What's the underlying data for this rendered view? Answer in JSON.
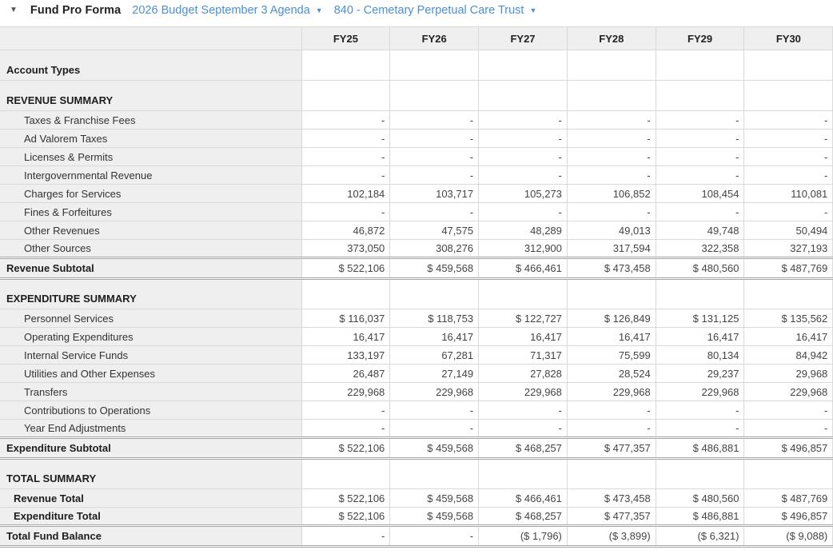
{
  "header": {
    "collapse_icon": "▼",
    "title": "Fund Pro Forma",
    "budget_selector": "2026 Budget September 3 Agenda",
    "budget_selector_caret": "▼",
    "fund_selector": "840 - Cemetary Perpetual Care Trust",
    "fund_selector_caret": "▼"
  },
  "colors": {
    "link_blue": "#4a90d2",
    "label_column_bg": "#efefef",
    "grid_border": "#d9d9d9",
    "subtotal_border": "#a6a6a6"
  },
  "table": {
    "columns": [
      "FY25",
      "FY26",
      "FY27",
      "FY28",
      "FY29",
      "FY30"
    ],
    "rows": [
      {
        "label": "Account Types",
        "style": "section",
        "values": [
          "",
          "",
          "",
          "",
          "",
          ""
        ]
      },
      {
        "label": "REVENUE SUMMARY",
        "style": "section",
        "values": [
          "",
          "",
          "",
          "",
          "",
          ""
        ]
      },
      {
        "label": "Taxes & Franchise Fees",
        "style": "item",
        "values": [
          "-",
          "-",
          "-",
          "-",
          "-",
          "-"
        ]
      },
      {
        "label": "Ad Valorem Taxes",
        "style": "item",
        "values": [
          "-",
          "-",
          "-",
          "-",
          "-",
          "-"
        ]
      },
      {
        "label": "Licenses & Permits",
        "style": "item",
        "values": [
          "-",
          "-",
          "-",
          "-",
          "-",
          "-"
        ]
      },
      {
        "label": "Intergovernmental Revenue",
        "style": "item",
        "values": [
          "-",
          "-",
          "-",
          "-",
          "-",
          "-"
        ]
      },
      {
        "label": "Charges for Services",
        "style": "item",
        "values": [
          "102,184",
          "103,717",
          "105,273",
          "106,852",
          "108,454",
          "110,081"
        ]
      },
      {
        "label": "Fines & Forfeitures",
        "style": "item",
        "values": [
          "-",
          "-",
          "-",
          "-",
          "-",
          "-"
        ]
      },
      {
        "label": "Other Revenues",
        "style": "item",
        "values": [
          "46,872",
          "47,575",
          "48,289",
          "49,013",
          "49,748",
          "50,494"
        ]
      },
      {
        "label": "Other Sources",
        "style": "item",
        "values": [
          "373,050",
          "308,276",
          "312,900",
          "317,594",
          "322,358",
          "327,193"
        ]
      },
      {
        "label": "Revenue Subtotal",
        "style": "subtotal",
        "values": [
          "$ 522,106",
          "$ 459,568",
          "$ 466,461",
          "$ 473,458",
          "$ 480,560",
          "$ 487,769"
        ]
      },
      {
        "label": "EXPENDITURE SUMMARY",
        "style": "section",
        "values": [
          "",
          "",
          "",
          "",
          "",
          ""
        ]
      },
      {
        "label": "Personnel Services",
        "style": "item",
        "values": [
          "$ 116,037",
          "$ 118,753",
          "$ 122,727",
          "$ 126,849",
          "$ 131,125",
          "$ 135,562"
        ]
      },
      {
        "label": "Operating Expenditures",
        "style": "item",
        "values": [
          "16,417",
          "16,417",
          "16,417",
          "16,417",
          "16,417",
          "16,417"
        ]
      },
      {
        "label": "Internal Service Funds",
        "style": "item",
        "values": [
          "133,197",
          "67,281",
          "71,317",
          "75,599",
          "80,134",
          "84,942"
        ]
      },
      {
        "label": "Utilities and Other Expenses",
        "style": "item",
        "values": [
          "26,487",
          "27,149",
          "27,828",
          "28,524",
          "29,237",
          "29,968"
        ]
      },
      {
        "label": "Transfers",
        "style": "item",
        "values": [
          "229,968",
          "229,968",
          "229,968",
          "229,968",
          "229,968",
          "229,968"
        ]
      },
      {
        "label": "Contributions to Operations",
        "style": "item",
        "values": [
          "-",
          "-",
          "-",
          "-",
          "-",
          "-"
        ]
      },
      {
        "label": "Year End Adjustments",
        "style": "item",
        "values": [
          "-",
          "-",
          "-",
          "-",
          "-",
          "-"
        ]
      },
      {
        "label": "Expenditure Subtotal",
        "style": "subtotal",
        "values": [
          "$ 522,106",
          "$ 459,568",
          "$ 468,257",
          "$ 477,357",
          "$ 486,881",
          "$ 496,857"
        ]
      },
      {
        "label": "TOTAL SUMMARY",
        "style": "section",
        "values": [
          "",
          "",
          "",
          "",
          "",
          ""
        ]
      },
      {
        "label": "Revenue Total",
        "style": "total-item",
        "values": [
          "$ 522,106",
          "$ 459,568",
          "$ 466,461",
          "$ 473,458",
          "$ 480,560",
          "$ 487,769"
        ]
      },
      {
        "label": "Expenditure Total",
        "style": "total-item",
        "values": [
          "$ 522,106",
          "$ 459,568",
          "$ 468,257",
          "$ 477,357",
          "$ 486,881",
          "$ 496,857"
        ]
      },
      {
        "label": "Total Fund Balance",
        "style": "grand",
        "values": [
          "-",
          "-",
          "($ 1,796)",
          "($ 3,899)",
          "($ 6,321)",
          "($ 9,088)"
        ]
      }
    ]
  }
}
